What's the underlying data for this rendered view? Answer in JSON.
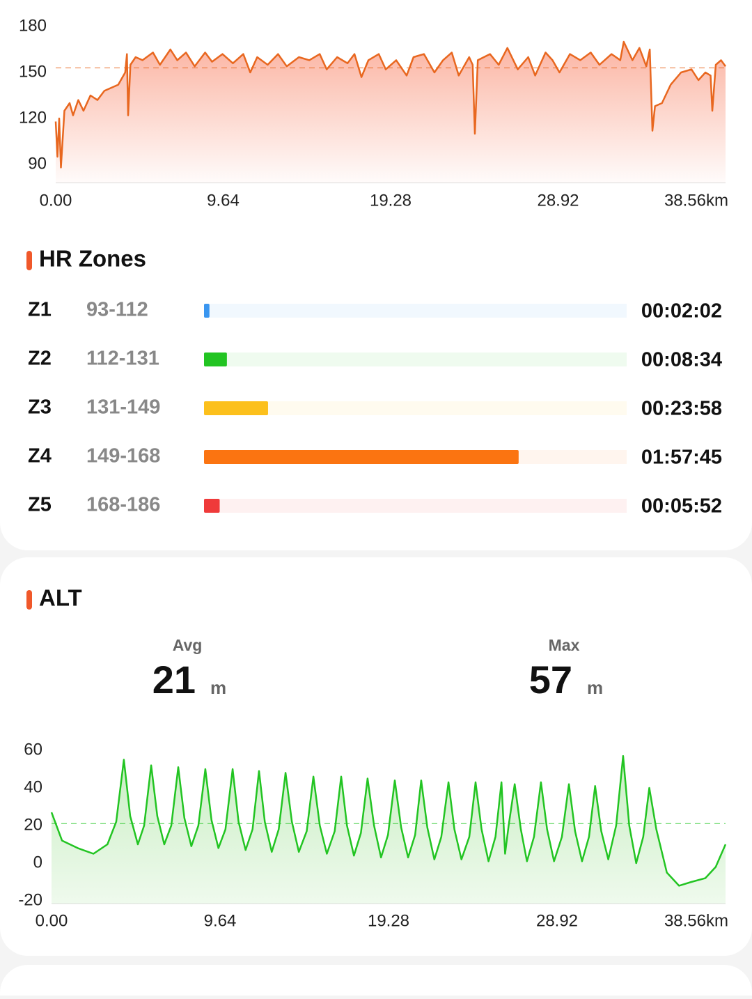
{
  "chart_data": [
    {
      "type": "line",
      "color": "#e8671f",
      "fill": "#fbb3a1",
      "xlim": [
        0,
        38.56
      ],
      "ylim": [
        78,
        182
      ],
      "yticks": [
        90,
        120,
        150,
        180
      ],
      "xticks": [
        {
          "value": 0,
          "label": "0.00"
        },
        9.64,
        19.28,
        28.92,
        {
          "value": 38.56,
          "label": "38.56km"
        }
      ],
      "avg_line": 153,
      "x": [
        0,
        0.1,
        0.2,
        0.3,
        0.5,
        0.8,
        1.0,
        1.3,
        1.6,
        2.0,
        2.4,
        2.8,
        3.2,
        3.6,
        4.0,
        4.1,
        4.17,
        4.3,
        4.6,
        5.0,
        5.6,
        6.0,
        6.6,
        7.0,
        7.5,
        8.0,
        8.6,
        9.0,
        9.6,
        10.2,
        10.8,
        11.2,
        11.6,
        12.2,
        12.8,
        13.3,
        14.0,
        14.6,
        15.2,
        15.6,
        16.2,
        16.8,
        17.2,
        17.6,
        18.0,
        18.6,
        19.0,
        19.6,
        20.2,
        20.6,
        21.2,
        21.8,
        22.3,
        22.8,
        23.2,
        23.8,
        24.0,
        24.13,
        24.3,
        25.0,
        25.5,
        26.0,
        26.6,
        27.2,
        27.6,
        28.2,
        28.6,
        29.0,
        29.6,
        30.2,
        30.8,
        31.3,
        32.0,
        32.5,
        32.7,
        33.2,
        33.6,
        34.0,
        34.2,
        34.35,
        34.5,
        34.9,
        35.4,
        36.0,
        36.6,
        37.0,
        37.4,
        37.7,
        37.8,
        38.0,
        38.3,
        38.56
      ],
      "values": [
        118,
        95,
        120,
        88,
        125,
        130,
        122,
        132,
        125,
        135,
        132,
        138,
        140,
        142,
        150,
        162,
        122,
        155,
        160,
        158,
        163,
        155,
        165,
        158,
        163,
        154,
        163,
        157,
        162,
        156,
        162,
        150,
        160,
        155,
        162,
        154,
        160,
        158,
        162,
        152,
        160,
        156,
        162,
        147,
        158,
        162,
        152,
        158,
        148,
        160,
        162,
        150,
        158,
        163,
        148,
        160,
        155,
        110,
        158,
        162,
        155,
        166,
        152,
        160,
        148,
        163,
        158,
        150,
        162,
        158,
        163,
        155,
        162,
        158,
        170,
        158,
        166,
        154,
        165,
        112,
        128,
        130,
        142,
        150,
        152,
        145,
        150,
        148,
        125,
        155,
        158,
        154
      ]
    },
    {
      "type": "line",
      "color": "#22c422",
      "fill": "#c9eec3",
      "xlim": [
        0,
        38.56
      ],
      "ylim": [
        -21.5,
        62
      ],
      "yticks": [
        -20,
        0,
        20,
        40,
        60
      ],
      "xticks": [
        {
          "value": 0,
          "label": "0.00"
        },
        9.64,
        19.28,
        28.92,
        {
          "value": 38.56,
          "label": "38.56km"
        }
      ],
      "avg_line": 21,
      "x": [
        0,
        0.6,
        1.5,
        2.4,
        3.2,
        3.7,
        4.14,
        4.5,
        4.94,
        5.3,
        5.7,
        6.05,
        6.45,
        6.85,
        7.25,
        7.6,
        8.0,
        8.4,
        8.8,
        9.15,
        9.55,
        9.95,
        10.36,
        10.7,
        11.1,
        11.5,
        11.87,
        12.2,
        12.6,
        13.0,
        13.39,
        13.75,
        14.15,
        14.6,
        14.98,
        15.35,
        15.75,
        16.2,
        16.57,
        16.9,
        17.3,
        17.7,
        18.08,
        18.45,
        18.85,
        19.25,
        19.64,
        20.0,
        20.4,
        20.8,
        21.15,
        21.5,
        21.9,
        22.3,
        22.71,
        23.05,
        23.45,
        23.9,
        24.26,
        24.6,
        25.0,
        25.4,
        25.74,
        25.95,
        26.15,
        26.5,
        26.85,
        27.2,
        27.6,
        28.0,
        28.35,
        28.75,
        29.2,
        29.6,
        29.95,
        30.35,
        30.75,
        31.1,
        31.45,
        31.85,
        32.3,
        32.7,
        33.05,
        33.45,
        33.85,
        34.2,
        34.6,
        35.2,
        35.9,
        36.6,
        37.4,
        38.0,
        38.56
      ],
      "values": [
        27,
        12,
        8,
        5,
        10,
        22,
        55,
        25,
        10,
        20,
        52,
        25,
        10,
        20,
        51,
        24,
        9,
        20,
        50,
        23,
        8,
        18,
        50,
        22,
        7,
        18,
        49,
        22,
        6,
        18,
        48,
        22,
        6,
        17,
        46,
        20,
        5,
        17,
        46,
        20,
        4,
        16,
        45,
        20,
        3,
        15,
        44,
        19,
        3,
        15,
        44,
        19,
        2,
        14,
        43,
        18,
        2,
        14,
        43,
        18,
        1,
        14,
        43,
        5,
        20,
        42,
        18,
        1,
        14,
        43,
        18,
        1,
        14,
        42,
        17,
        1,
        14,
        41,
        17,
        2,
        20,
        57,
        20,
        0,
        14,
        40,
        18,
        -5,
        -12,
        -10,
        -8,
        -2,
        10
      ]
    }
  ],
  "hr_zones": {
    "title": "HR Zones",
    "zones": [
      {
        "zone": "Z1",
        "range": "93-112",
        "time": "00:02:02",
        "color": "#3a96f0"
      },
      {
        "zone": "Z2",
        "range": "112-131",
        "time": "00:08:34",
        "color": "#22c422"
      },
      {
        "zone": "Z3",
        "range": "131-149",
        "time": "00:23:58",
        "color": "#fcc01c"
      },
      {
        "zone": "Z4",
        "range": "149-168",
        "time": "01:57:45",
        "color": "#fb7411"
      },
      {
        "zone": "Z5",
        "range": "168-186",
        "time": "00:05:52",
        "color": "#ef3a3a"
      }
    ]
  },
  "alt": {
    "title": "ALT",
    "stats": [
      {
        "label": "Avg",
        "value": 21,
        "unit": "m"
      },
      {
        "label": "Max",
        "value": 57,
        "unit": "m"
      }
    ]
  }
}
